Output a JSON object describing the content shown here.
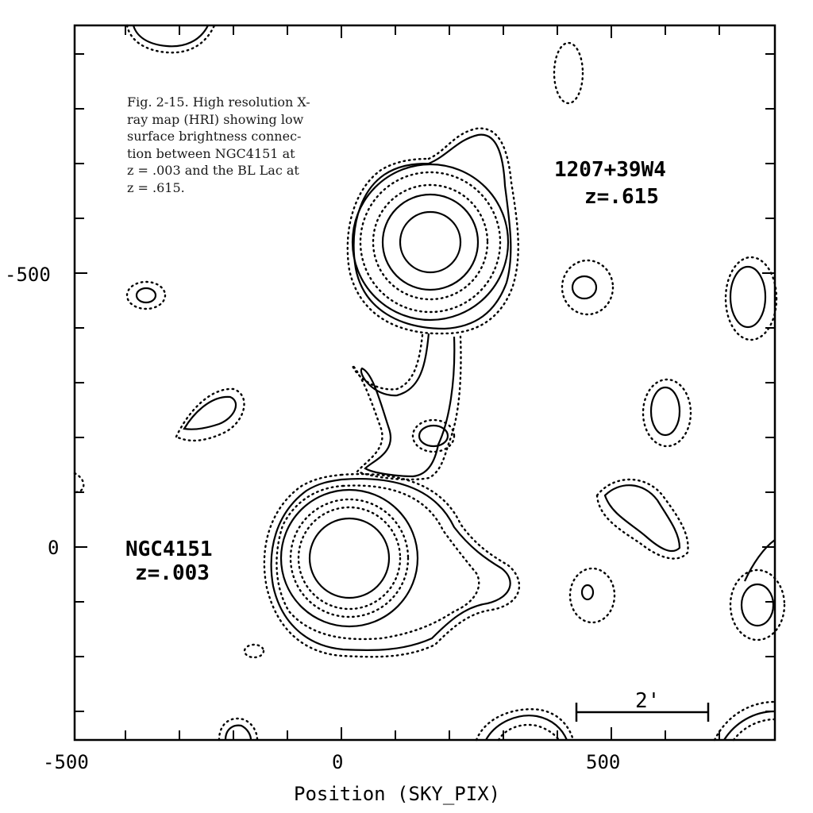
{
  "caption": {
    "lines": [
      "Fig. 2-15. High resolution X-",
      "ray map (HRI) showing low",
      "surface brightness connec-",
      "tion between NGC4151 at",
      "z = .003 and the BL Lac at",
      "z = .615."
    ]
  },
  "sources": {
    "upper": {
      "name": "1207+39W4",
      "redshift": "z=.615"
    },
    "lower": {
      "name": "NGC4151",
      "redshift": "z=.003"
    }
  },
  "axes": {
    "xlabel": "Position (SKY_PIX)",
    "x_tick_labels": [
      "-500",
      "0",
      "500"
    ],
    "y_tick_labels": [
      "-500",
      "0"
    ]
  },
  "scale_bar": {
    "label": "2'"
  }
}
